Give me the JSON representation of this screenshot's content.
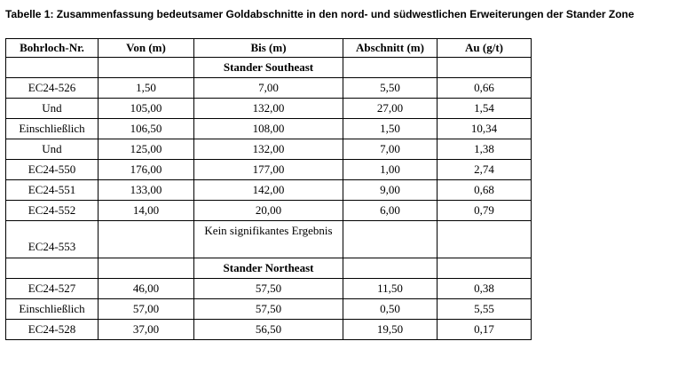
{
  "title": "Tabelle 1: Zusammenfassung bedeutsamer Goldabschnitte in den nord- und südwestlichen Erweiterungen der Stander Zone",
  "table": {
    "header": [
      "Bohrloch-Nr.",
      "Von (m)",
      "Bis (m)",
      "Abschnitt (m)",
      "Au (g/t)"
    ],
    "rows": [
      {
        "section": "Stander Southeast"
      },
      [
        "EC24-526",
        "1,50",
        "7,00",
        "5,50",
        "0,66"
      ],
      [
        "Und",
        "105,00",
        "132,00",
        "27,00",
        "1,54"
      ],
      [
        "Einschließlich",
        "106,50",
        "108,00",
        "1,50",
        "10,34"
      ],
      [
        "Und",
        "125,00",
        "132,00",
        "7,00",
        "1,38"
      ],
      [
        "EC24-550",
        "176,00",
        "177,00",
        "1,00",
        "2,74"
      ],
      [
        "EC24-551",
        "133,00",
        "142,00",
        "9,00",
        "0,68"
      ],
      [
        "EC24-552",
        "14,00",
        "20,00",
        "6,00",
        "0,79"
      ],
      [
        "EC24-553",
        null,
        "Kein signifikantes Ergebnis",
        null,
        null
      ],
      {
        "section": "Stander Northeast"
      },
      [
        "EC24-527",
        "46,00",
        "57,50",
        "11,50",
        "0,38"
      ],
      [
        "Einschließlich",
        "57,00",
        "57,50",
        "0,50",
        "5,55"
      ],
      [
        "EC24-528",
        "37,00",
        "56,50",
        "19,50",
        "0,17"
      ]
    ]
  }
}
